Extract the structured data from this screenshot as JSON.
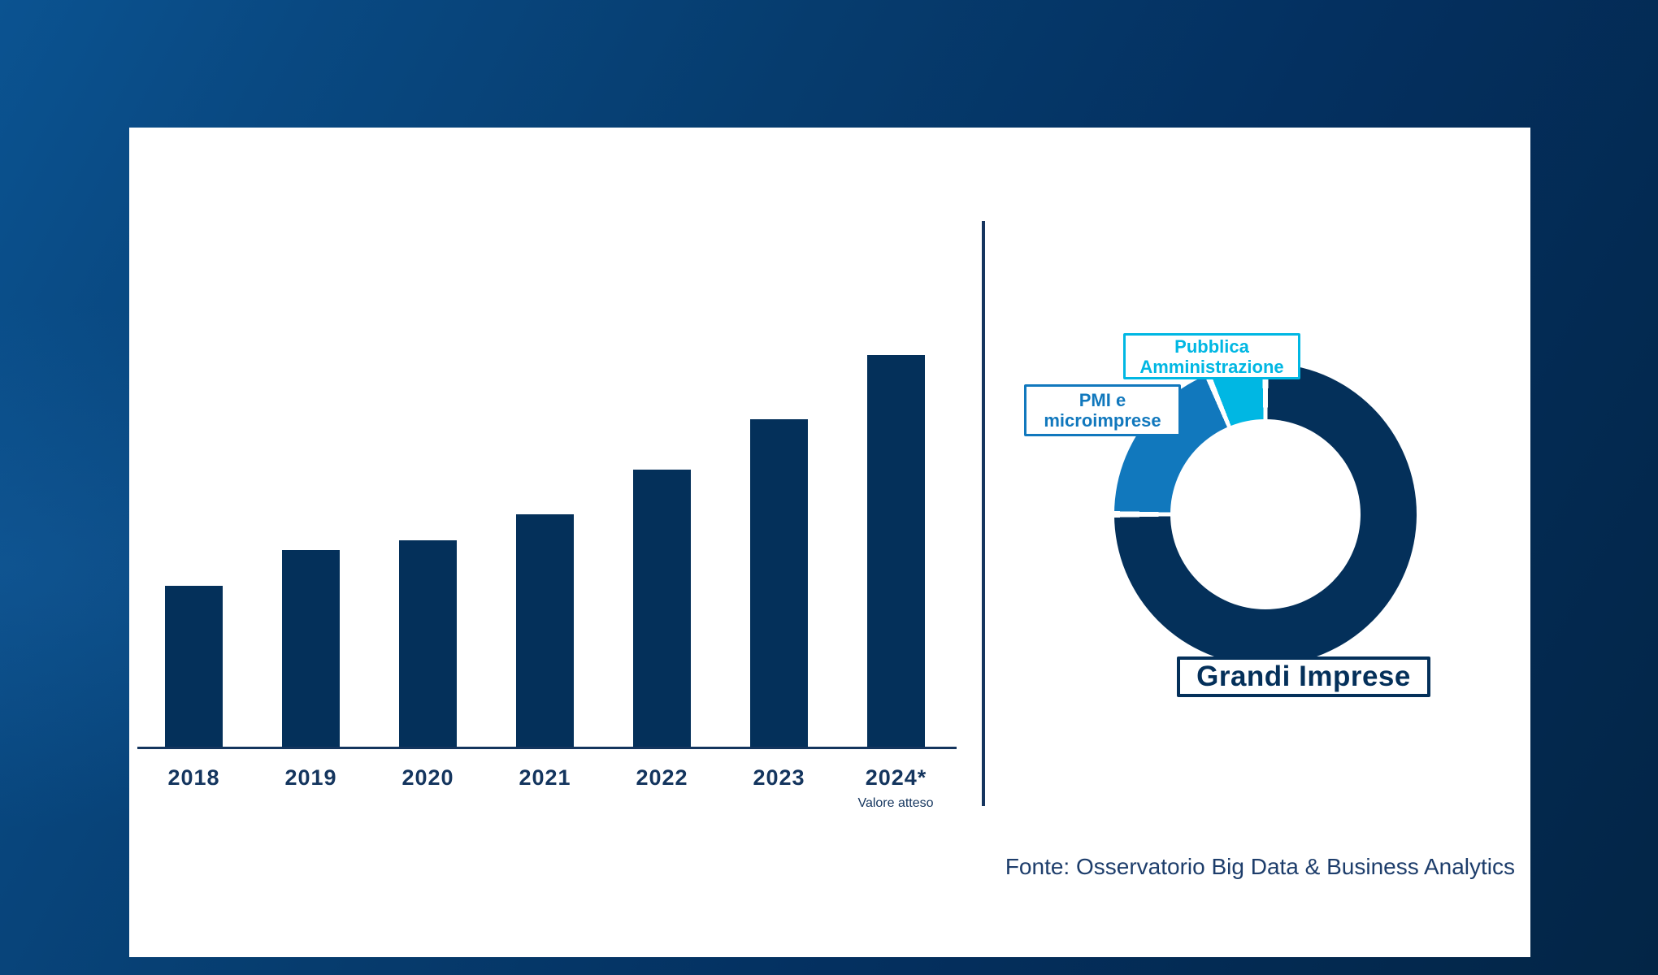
{
  "page": {
    "background_gradient_colors": [
      "#0b5391",
      "#063c6e",
      "#032a52"
    ],
    "card_color": "#ffffff"
  },
  "colors": {
    "navy": "#04305a",
    "blue": "#1178bd",
    "cyan": "#00b7e3",
    "axis_text": "#14355e",
    "divider": "#16355f",
    "source_text": "#1d3d6b"
  },
  "chart_data": [
    {
      "type": "bar",
      "title": "",
      "categories": [
        "2018",
        "2019",
        "2020",
        "2021",
        "2022",
        "2023",
        "2024*"
      ],
      "values": [
        1.0,
        1.22,
        1.28,
        1.44,
        1.72,
        2.03,
        2.43
      ],
      "value_units": "relative index (2018 = 1.0); no numeric axis or value labels are shown in the chart",
      "last_category_footnote": "Valore atteso",
      "bar_color": "#04305a",
      "xlabel": "",
      "ylabel": "",
      "grid": false,
      "legend": false
    },
    {
      "type": "pie",
      "subtype": "donut",
      "title": "",
      "segments": [
        {
          "label": "Grandi Imprese",
          "share_pct": 75,
          "color": "#04305a",
          "start_deg": 0,
          "end_deg": 270
        },
        {
          "label": "PMI e microimprese",
          "share_pct": 18.75,
          "color": "#1178bd",
          "start_deg": 270,
          "end_deg": 337.5
        },
        {
          "label": "Pubblica Amministrazione",
          "share_pct": 6.25,
          "color": "#00b7e3",
          "start_deg": 337.5,
          "end_deg": 360
        }
      ],
      "note": "Percentages estimated from arc angles; no numeric labels are shown in the chart",
      "legend_position": "callout boxes"
    }
  ],
  "callouts": {
    "pubblica_amministrazione": "Pubblica\nAmministrazione",
    "pmi_microimprese": "PMI e\nmicroimprese",
    "grandi_imprese": "Grandi Imprese"
  },
  "source": {
    "label": "Fonte: Osservatorio Big Data & Business Analytics"
  }
}
